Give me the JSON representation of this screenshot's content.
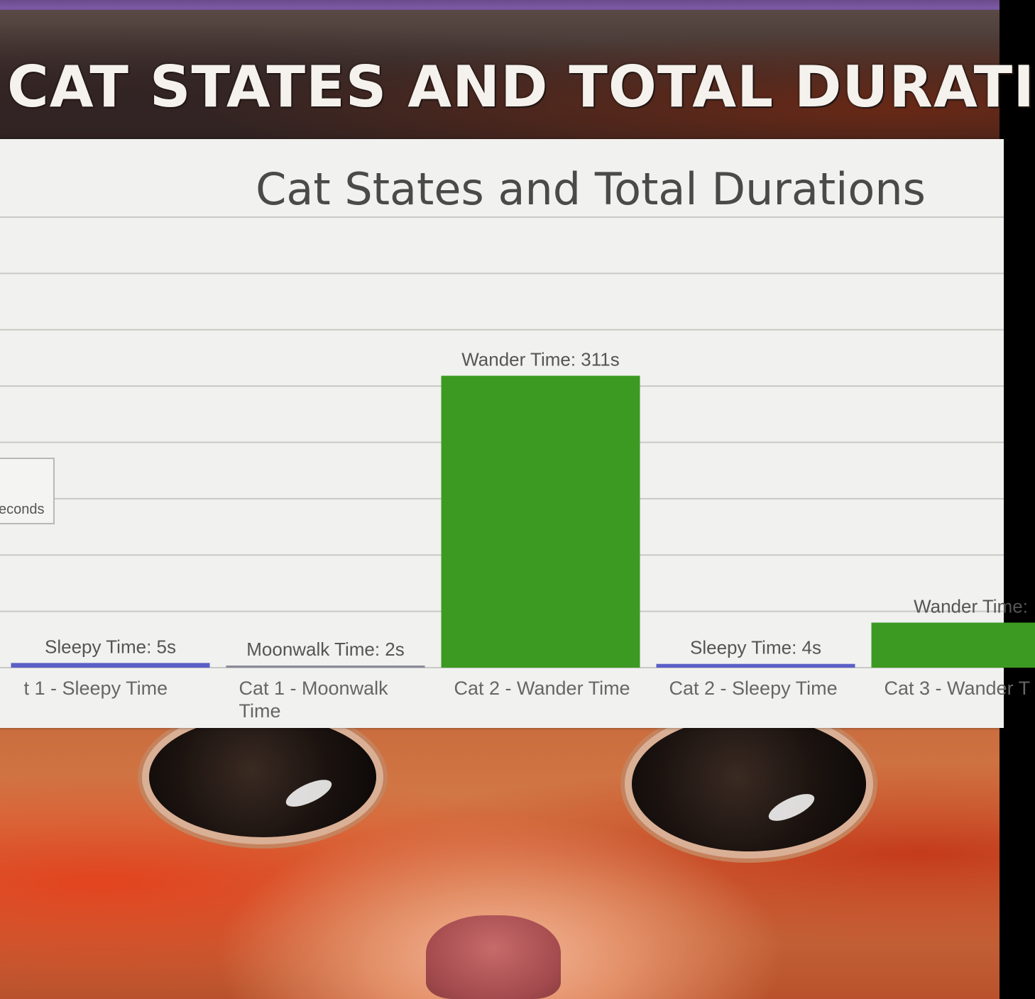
{
  "banner": {
    "title": "CAT STATES AND TOTAL DURATI"
  },
  "chart_data": {
    "type": "bar",
    "title": "Cat States and Total Durations",
    "xlabel": "",
    "ylabel": "",
    "ylim": [
      0,
      480
    ],
    "grid": true,
    "legend": {
      "placement": "left",
      "text": "econds"
    },
    "categories": [
      [
        "t 1 - Sleepy Time"
      ],
      [
        "Cat 1 - Moonwalk",
        "Time"
      ],
      [
        "Cat 2 - Wander Time"
      ],
      [
        "Cat 2 - Sleepy Time"
      ],
      [
        "Cat 3 - Wander T"
      ]
    ],
    "values": [
      5,
      2,
      311,
      4,
      48
    ],
    "data_labels": [
      "Sleepy Time: 5s",
      "Moonwalk Time: 2s",
      "Wander Time: 311s",
      "Sleepy Time: 4s",
      "Wander Time:"
    ],
    "colors": [
      "#5b5fc7",
      "#8a8a9a",
      "#3c9a22",
      "#5b5fc7",
      "#3c9a22"
    ]
  }
}
